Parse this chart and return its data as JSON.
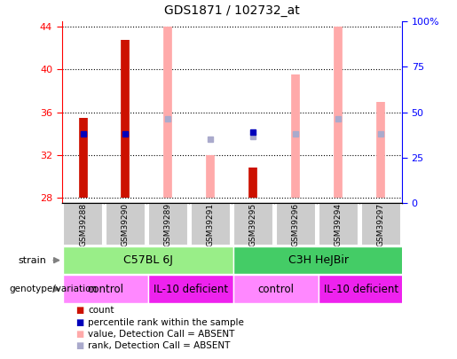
{
  "title": "GDS1871 / 102732_at",
  "samples": [
    "GSM39288",
    "GSM39290",
    "GSM39289",
    "GSM39291",
    "GSM39295",
    "GSM39296",
    "GSM39294",
    "GSM39297"
  ],
  "xlim": [
    -0.5,
    7.5
  ],
  "ylim_left": [
    27.5,
    44.5
  ],
  "ylim_right": [
    0,
    100
  ],
  "yticks_left": [
    28,
    32,
    36,
    40,
    44
  ],
  "yticks_right": [
    0,
    25,
    50,
    75,
    100
  ],
  "ytick_labels_right": [
    "0",
    "25",
    "50",
    "75",
    "100%"
  ],
  "count_values": [
    35.5,
    42.8,
    null,
    null,
    30.8,
    null,
    null,
    null
  ],
  "count_base": 28,
  "blue_rank_y": [
    34.0,
    34.0,
    null,
    null,
    34.1,
    null,
    null,
    null
  ],
  "absent_value_top": [
    null,
    null,
    44.0,
    32.0,
    null,
    39.5,
    44.0,
    37.0
  ],
  "absent_value_bottom": [
    null,
    null,
    28.0,
    28.0,
    null,
    28.0,
    28.0,
    28.0
  ],
  "absent_rank_y": [
    null,
    null,
    35.4,
    33.5,
    33.7,
    34.0,
    35.4,
    34.0
  ],
  "red_color": "#CC1100",
  "blue_color": "#0000BB",
  "pink_color": "#FFAAAA",
  "light_blue_color": "#AAAACC",
  "strain1_color": "#99EE88",
  "strain2_color": "#44CC66",
  "geno_light_color": "#FF88FF",
  "geno_dark_color": "#EE22EE",
  "sample_box_color": "#CCCCCC",
  "legend_items": [
    {
      "label": "count",
      "color": "#CC1100"
    },
    {
      "label": "percentile rank within the sample",
      "color": "#0000BB"
    },
    {
      "label": "value, Detection Call = ABSENT",
      "color": "#FFAAAA"
    },
    {
      "label": "rank, Detection Call = ABSENT",
      "color": "#AAAACC"
    }
  ]
}
